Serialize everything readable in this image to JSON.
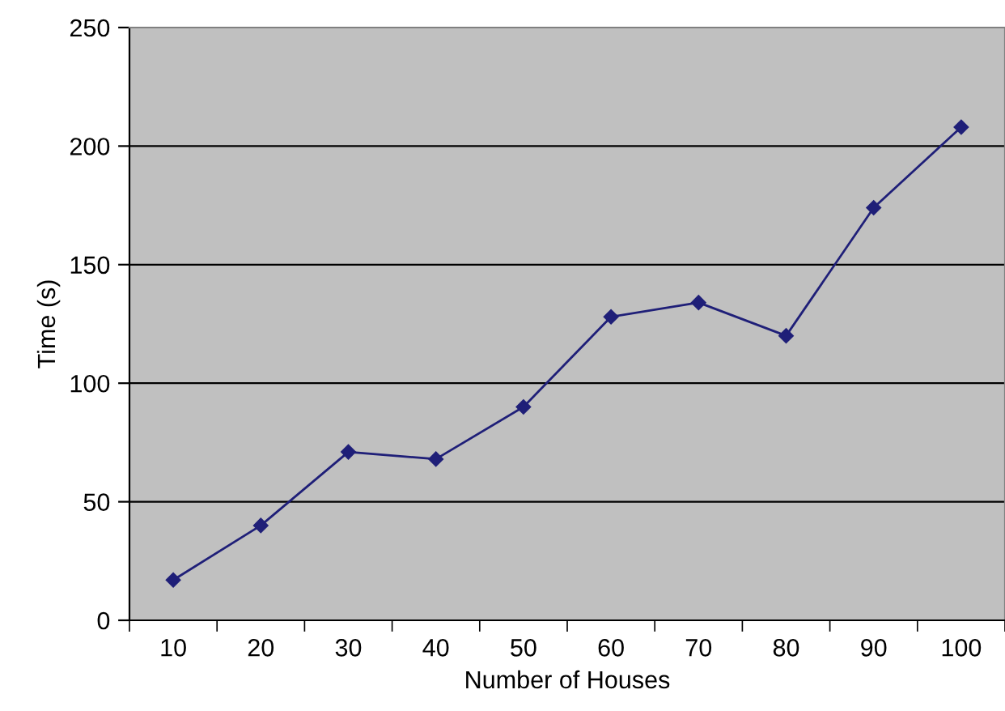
{
  "chart_data": {
    "type": "line",
    "xlabel": "Number of Houses",
    "ylabel": "Time (s)",
    "categories": [
      "10",
      "20",
      "30",
      "40",
      "50",
      "60",
      "70",
      "80",
      "90",
      "100"
    ],
    "series": [
      {
        "color": "#1f1f78",
        "values": [
          17,
          40,
          71,
          68,
          90,
          128,
          134,
          120,
          174,
          208
        ]
      }
    ],
    "ylim": [
      0,
      250
    ],
    "yticks": [
      0,
      50,
      100,
      150,
      200,
      250
    ],
    "grid": "y",
    "marker": "diamond",
    "line_style": "solid",
    "legend": false
  }
}
